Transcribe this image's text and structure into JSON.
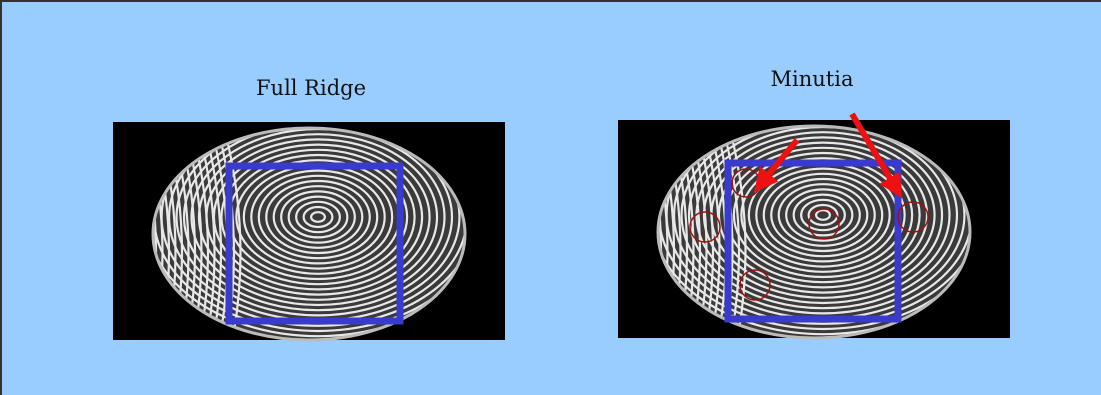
{
  "panels": [
    {
      "label": "Full Ridge"
    },
    {
      "label": "Minutia"
    }
  ]
}
